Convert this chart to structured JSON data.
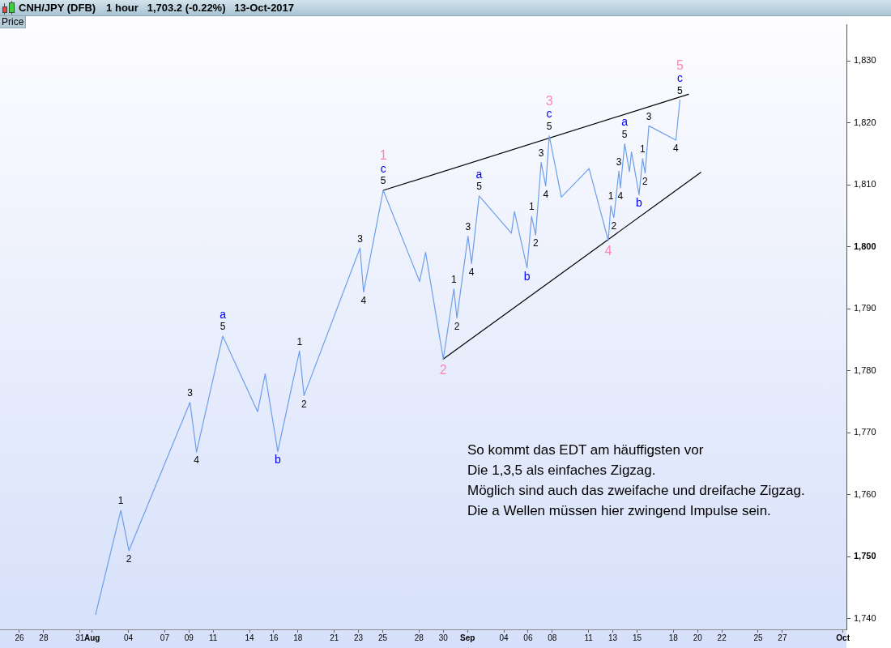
{
  "chart_data": {
    "type": "line",
    "title": "CNH/JPY (DFB)",
    "subtitle": "1 hour   1,703.2 (-0.22%)   13-Oct-2017",
    "ylabel": "Price",
    "xlim": [
      "2017-07-24T09:30",
      "2017-10-02T07:00"
    ],
    "xticks": [
      {
        "value": "2017-07-26",
        "label": "26"
      },
      {
        "value": "2017-07-28",
        "label": "28"
      },
      {
        "value": "2017-07-31",
        "label": "31"
      },
      {
        "value": "2017-08-01",
        "label": "Aug"
      },
      {
        "value": "2017-08-04",
        "label": "04"
      },
      {
        "value": "2017-08-07",
        "label": "07"
      },
      {
        "value": "2017-08-09",
        "label": "09"
      },
      {
        "value": "2017-08-11",
        "label": "11"
      },
      {
        "value": "2017-08-14",
        "label": "14"
      },
      {
        "value": "2017-08-16",
        "label": "16"
      },
      {
        "value": "2017-08-18",
        "label": "18"
      },
      {
        "value": "2017-08-21",
        "label": "21"
      },
      {
        "value": "2017-08-23",
        "label": "23"
      },
      {
        "value": "2017-08-25",
        "label": "25"
      },
      {
        "value": "2017-08-28",
        "label": "28"
      },
      {
        "value": "2017-08-30",
        "label": "30"
      },
      {
        "value": "2017-09-01",
        "label": "Sep"
      },
      {
        "value": "2017-09-04",
        "label": "04"
      },
      {
        "value": "2017-09-06",
        "label": "06"
      },
      {
        "value": "2017-09-08",
        "label": "08"
      },
      {
        "value": "2017-09-11",
        "label": "11"
      },
      {
        "value": "2017-09-13",
        "label": "13"
      },
      {
        "value": "2017-09-15",
        "label": "15"
      },
      {
        "value": "2017-09-18",
        "label": "18"
      },
      {
        "value": "2017-09-20",
        "label": "20"
      },
      {
        "value": "2017-09-22",
        "label": "22"
      },
      {
        "value": "2017-09-25",
        "label": "25"
      },
      {
        "value": "2017-09-27",
        "label": "27"
      },
      {
        "value": "2017-10-02",
        "label": "Oct"
      }
    ],
    "ylim": [
      1738.3,
      1835.8
    ],
    "yticks": [
      {
        "value": 1740,
        "label": "1,740"
      },
      {
        "value": 1750,
        "label": "1,750"
      },
      {
        "value": 1760,
        "label": "1,760"
      },
      {
        "value": 1770,
        "label": "1,770"
      },
      {
        "value": 1780,
        "label": "1,780"
      },
      {
        "value": 1790,
        "label": "1,790"
      },
      {
        "value": 1800,
        "label": "1,800"
      },
      {
        "value": 1810,
        "label": "1,810"
      },
      {
        "value": 1820,
        "label": "1,820"
      },
      {
        "value": 1830,
        "label": "1,830"
      }
    ],
    "marker": "none",
    "series": [
      {
        "color": "#6d9eeb",
        "x": [
          "2017-08-01T07:00",
          "2017-08-03T09:00",
          "2017-08-04T01:00",
          "2017-08-09T02:00",
          "2017-08-09T15:00",
          "2017-08-11T19:00",
          "2017-08-14T16:00",
          "2017-08-15T07:00",
          "2017-08-16T08:00",
          "2017-08-18T03:00",
          "2017-08-18T12:00",
          "2017-08-23T03:00",
          "2017-08-23T10:00",
          "2017-08-25T01:00",
          "2017-08-28T01:00",
          "2017-08-28T13:00",
          "2017-08-30T00:00",
          "2017-08-30T21:00",
          "2017-08-31T03:00",
          "2017-09-01T01:00",
          "2017-09-01T08:00",
          "2017-09-01T23:00",
          "2017-09-04T15:00",
          "2017-09-04T21:00",
          "2017-09-05T22:00",
          "2017-09-06T07:00",
          "2017-09-06T15:00",
          "2017-09-07T02:00",
          "2017-09-07T11:00",
          "2017-09-07T18:00",
          "2017-09-08T18:00",
          "2017-09-11T01:00",
          "2017-09-12T15:00",
          "2017-09-12T20:00",
          "2017-09-13T02:00",
          "2017-09-13T12:00",
          "2017-09-13T15:00",
          "2017-09-13T23:30",
          "2017-09-14T09:00",
          "2017-09-14T13:00",
          "2017-09-15T04:00",
          "2017-09-15T11:00",
          "2017-09-15T16:00",
          "2017-09-15T23:30",
          "2017-09-18T05:00",
          "2017-09-18T13:00"
        ],
        "values": [
          1740.7,
          1757.5,
          1751.0,
          1774.9,
          1766.9,
          1785.6,
          1773.4,
          1779.5,
          1767.0,
          1783.2,
          1776.0,
          1799.8,
          1792.7,
          1809.1,
          1794.4,
          1799.1,
          1781.9,
          1793.2,
          1788.5,
          1801.7,
          1797.3,
          1808.2,
          1802.2,
          1805.7,
          1796.6,
          1804.9,
          1801.9,
          1813.6,
          1809.8,
          1817.9,
          1808.0,
          1812.6,
          1801.0,
          1806.6,
          1804.7,
          1812.2,
          1809.5,
          1816.6,
          1812.1,
          1815.3,
          1808.4,
          1814.2,
          1811.9,
          1819.5,
          1817.2,
          1823.7
        ]
      },
      {
        "type": "line",
        "color": "#000000",
        "x": [
          "2017-08-25T01:00",
          "2017-09-19T06:00"
        ],
        "values": [
          1809.1,
          1824.6
        ]
      },
      {
        "type": "line",
        "color": "#000000",
        "x": [
          "2017-08-30T00:00",
          "2017-09-20T06:30"
        ],
        "values": [
          1781.9,
          1812.0
        ]
      }
    ],
    "annotations": [
      {
        "text": "1",
        "x": "2017-08-03T09:00",
        "y": 1757.5
      },
      {
        "text": "2",
        "x": "2017-08-04T01:00",
        "y": 1751.0
      },
      {
        "text": "3",
        "x": "2017-08-09T02:00",
        "y": 1774.9
      },
      {
        "text": "4",
        "x": "2017-08-09T15:00",
        "y": 1766.9
      },
      {
        "text": "5",
        "x": "2017-08-11T19:00",
        "y": 1785.6
      },
      {
        "text": "a",
        "x": "2017-08-11T19:00",
        "y": 1785.6
      },
      {
        "text": "b",
        "x": "2017-08-16T08:00",
        "y": 1767.0
      },
      {
        "text": "1",
        "x": "2017-08-18T03:00",
        "y": 1783.2
      },
      {
        "text": "2",
        "x": "2017-08-18T12:00",
        "y": 1776.0
      },
      {
        "text": "3",
        "x": "2017-08-23T03:00",
        "y": 1799.8
      },
      {
        "text": "4",
        "x": "2017-08-23T10:00",
        "y": 1792.7
      },
      {
        "text": "5",
        "x": "2017-08-25T01:00",
        "y": 1809.1
      },
      {
        "text": "c",
        "x": "2017-08-25T01:00",
        "y": 1809.1
      },
      {
        "text": "1",
        "x": "2017-08-25T01:00",
        "y": 1809.1
      },
      {
        "text": "2",
        "x": "2017-08-30T00:00",
        "y": 1781.9
      },
      {
        "text": "1",
        "x": "2017-08-30T21:00",
        "y": 1793.2
      },
      {
        "text": "2",
        "x": "2017-08-31T03:00",
        "y": 1788.5
      },
      {
        "text": "3",
        "x": "2017-09-01T01:00",
        "y": 1801.7
      },
      {
        "text": "4",
        "x": "2017-09-01T08:00",
        "y": 1797.3
      },
      {
        "text": "5",
        "x": "2017-09-01T23:00",
        "y": 1808.2
      },
      {
        "text": "a",
        "x": "2017-09-01T23:00",
        "y": 1808.2
      },
      {
        "text": "b",
        "x": "2017-09-05T22:00",
        "y": 1796.6
      },
      {
        "text": "1",
        "x": "2017-09-06T07:00",
        "y": 1804.9
      },
      {
        "text": "2",
        "x": "2017-09-06T15:00",
        "y": 1801.9
      },
      {
        "text": "3",
        "x": "2017-09-07T02:00",
        "y": 1813.6
      },
      {
        "text": "4",
        "x": "2017-09-07T11:00",
        "y": 1809.8
      },
      {
        "text": "5",
        "x": "2017-09-07T18:00",
        "y": 1817.9
      },
      {
        "text": "c",
        "x": "2017-09-07T18:00",
        "y": 1817.9
      },
      {
        "text": "3",
        "x": "2017-09-07T18:00",
        "y": 1817.9
      },
      {
        "text": "4",
        "x": "2017-09-12T15:00",
        "y": 1801.0
      },
      {
        "text": "1",
        "x": "2017-09-12T20:00",
        "y": 1806.6
      },
      {
        "text": "2",
        "x": "2017-09-13T02:00",
        "y": 1804.7
      },
      {
        "text": "3",
        "x": "2017-09-13T12:00",
        "y": 1812.2
      },
      {
        "text": "4",
        "x": "2017-09-13T15:00",
        "y": 1809.5
      },
      {
        "text": "5",
        "x": "2017-09-13T23:30",
        "y": 1816.6
      },
      {
        "text": "a",
        "x": "2017-09-13T23:30",
        "y": 1816.6
      },
      {
        "text": "b",
        "x": "2017-09-15T04:00",
        "y": 1808.4
      },
      {
        "text": "1",
        "x": "2017-09-15T11:00",
        "y": 1814.2
      },
      {
        "text": "2",
        "x": "2017-09-15T16:00",
        "y": 1811.9
      },
      {
        "text": "3",
        "x": "2017-09-15T23:30",
        "y": 1819.5
      },
      {
        "text": "4",
        "x": "2017-09-18T05:00",
        "y": 1817.2
      },
      {
        "text": "5",
        "x": "2017-09-18T13:00",
        "y": 1823.7
      },
      {
        "text": "c",
        "x": "2017-09-18T13:00",
        "y": 1823.7
      },
      {
        "text": "5",
        "x": "2017-09-18T13:00",
        "y": 1823.7
      },
      "So kommt das EDT am häuffigsten vor",
      "Die 1,3,5 als einfaches Zigzag.",
      "Möglich sind auch das zweifache und dreifache Zigzag.",
      "Die a Wellen müssen hier zwingend Impulse sein."
    ]
  }
}
